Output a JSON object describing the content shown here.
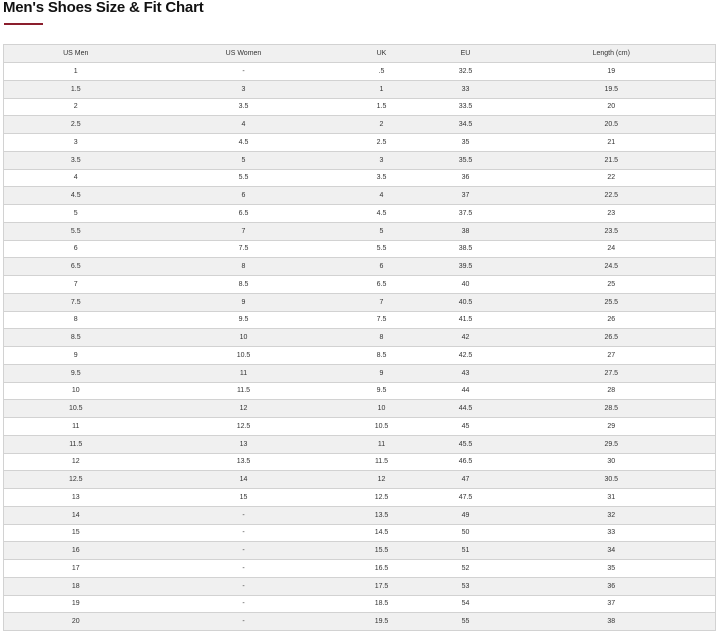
{
  "title": "Men's Shoes Size & Fit Chart",
  "accent_color": "#8b1e2d",
  "columns": [
    "US Men",
    "US Women",
    "UK",
    "EU",
    "Length (cm)"
  ],
  "rows": [
    [
      "1",
      "-",
      ".5",
      "32.5",
      "19"
    ],
    [
      "1.5",
      "3",
      "1",
      "33",
      "19.5"
    ],
    [
      "2",
      "3.5",
      "1.5",
      "33.5",
      "20"
    ],
    [
      "2.5",
      "4",
      "2",
      "34.5",
      "20.5"
    ],
    [
      "3",
      "4.5",
      "2.5",
      "35",
      "21"
    ],
    [
      "3.5",
      "5",
      "3",
      "35.5",
      "21.5"
    ],
    [
      "4",
      "5.5",
      "3.5",
      "36",
      "22"
    ],
    [
      "4.5",
      "6",
      "4",
      "37",
      "22.5"
    ],
    [
      "5",
      "6.5",
      "4.5",
      "37.5",
      "23"
    ],
    [
      "5.5",
      "7",
      "5",
      "38",
      "23.5"
    ],
    [
      "6",
      "7.5",
      "5.5",
      "38.5",
      "24"
    ],
    [
      "6.5",
      "8",
      "6",
      "39.5",
      "24.5"
    ],
    [
      "7",
      "8.5",
      "6.5",
      "40",
      "25"
    ],
    [
      "7.5",
      "9",
      "7",
      "40.5",
      "25.5"
    ],
    [
      "8",
      "9.5",
      "7.5",
      "41.5",
      "26"
    ],
    [
      "8.5",
      "10",
      "8",
      "42",
      "26.5"
    ],
    [
      "9",
      "10.5",
      "8.5",
      "42.5",
      "27"
    ],
    [
      "9.5",
      "11",
      "9",
      "43",
      "27.5"
    ],
    [
      "10",
      "11.5",
      "9.5",
      "44",
      "28"
    ],
    [
      "10.5",
      "12",
      "10",
      "44.5",
      "28.5"
    ],
    [
      "11",
      "12.5",
      "10.5",
      "45",
      "29"
    ],
    [
      "11.5",
      "13",
      "11",
      "45.5",
      "29.5"
    ],
    [
      "12",
      "13.5",
      "11.5",
      "46.5",
      "30"
    ],
    [
      "12.5",
      "14",
      "12",
      "47",
      "30.5"
    ],
    [
      "13",
      "15",
      "12.5",
      "47.5",
      "31"
    ],
    [
      "14",
      "-",
      "13.5",
      "49",
      "32"
    ],
    [
      "15",
      "-",
      "14.5",
      "50",
      "33"
    ],
    [
      "16",
      "-",
      "15.5",
      "51",
      "34"
    ],
    [
      "17",
      "-",
      "16.5",
      "52",
      "35"
    ],
    [
      "18",
      "-",
      "17.5",
      "53",
      "36"
    ],
    [
      "19",
      "-",
      "18.5",
      "54",
      "37"
    ],
    [
      "20",
      "-",
      "19.5",
      "55",
      "38"
    ]
  ]
}
